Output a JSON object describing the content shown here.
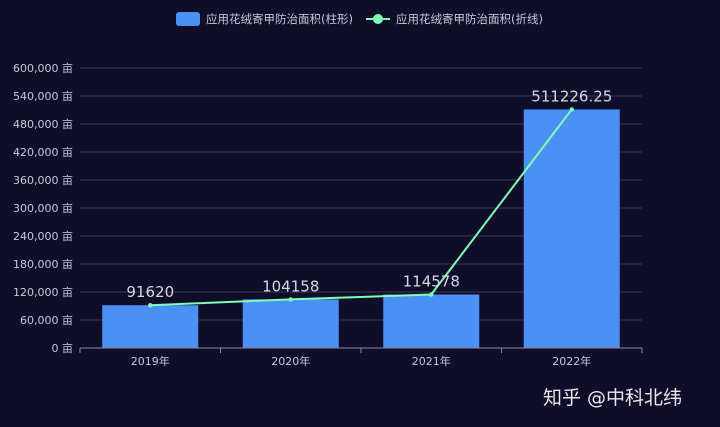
{
  "chart_data": {
    "type": "bar",
    "categories": [
      "2019年",
      "2020年",
      "2021年",
      "2022年"
    ],
    "series": [
      {
        "name": "应用花绒寄甲防治面积(柱形)",
        "kind": "bar",
        "color": "#4a90f5",
        "values": [
          91620,
          104158,
          114578,
          511226.25
        ]
      },
      {
        "name": "应用花绒寄甲防治面积(折线)",
        "kind": "line",
        "color": "#7fffb4",
        "values": [
          91620,
          104158,
          114578,
          511226.25
        ]
      }
    ],
    "data_labels": [
      "91620",
      "104158",
      "114578",
      "511226.25"
    ],
    "y_ticks": [
      0,
      60000,
      120000,
      180000,
      240000,
      300000,
      360000,
      420000,
      480000,
      540000,
      600000
    ],
    "y_tick_labels": [
      "0 亩",
      "60,000 亩",
      "120,000 亩",
      "180,000 亩",
      "240,000 亩",
      "300,000 亩",
      "360,000 亩",
      "420,000 亩",
      "480,000 亩",
      "540,000 亩",
      "600,000 亩"
    ],
    "ylim": [
      0,
      600000
    ],
    "grid": true,
    "legend_position": "top-center",
    "title": "",
    "xlabel": "",
    "ylabel": ""
  },
  "watermark": "知乎 @中科北纬",
  "colors": {
    "background": "#100d2a",
    "grid": "#3a3850",
    "axis": "#8a8aa0"
  }
}
